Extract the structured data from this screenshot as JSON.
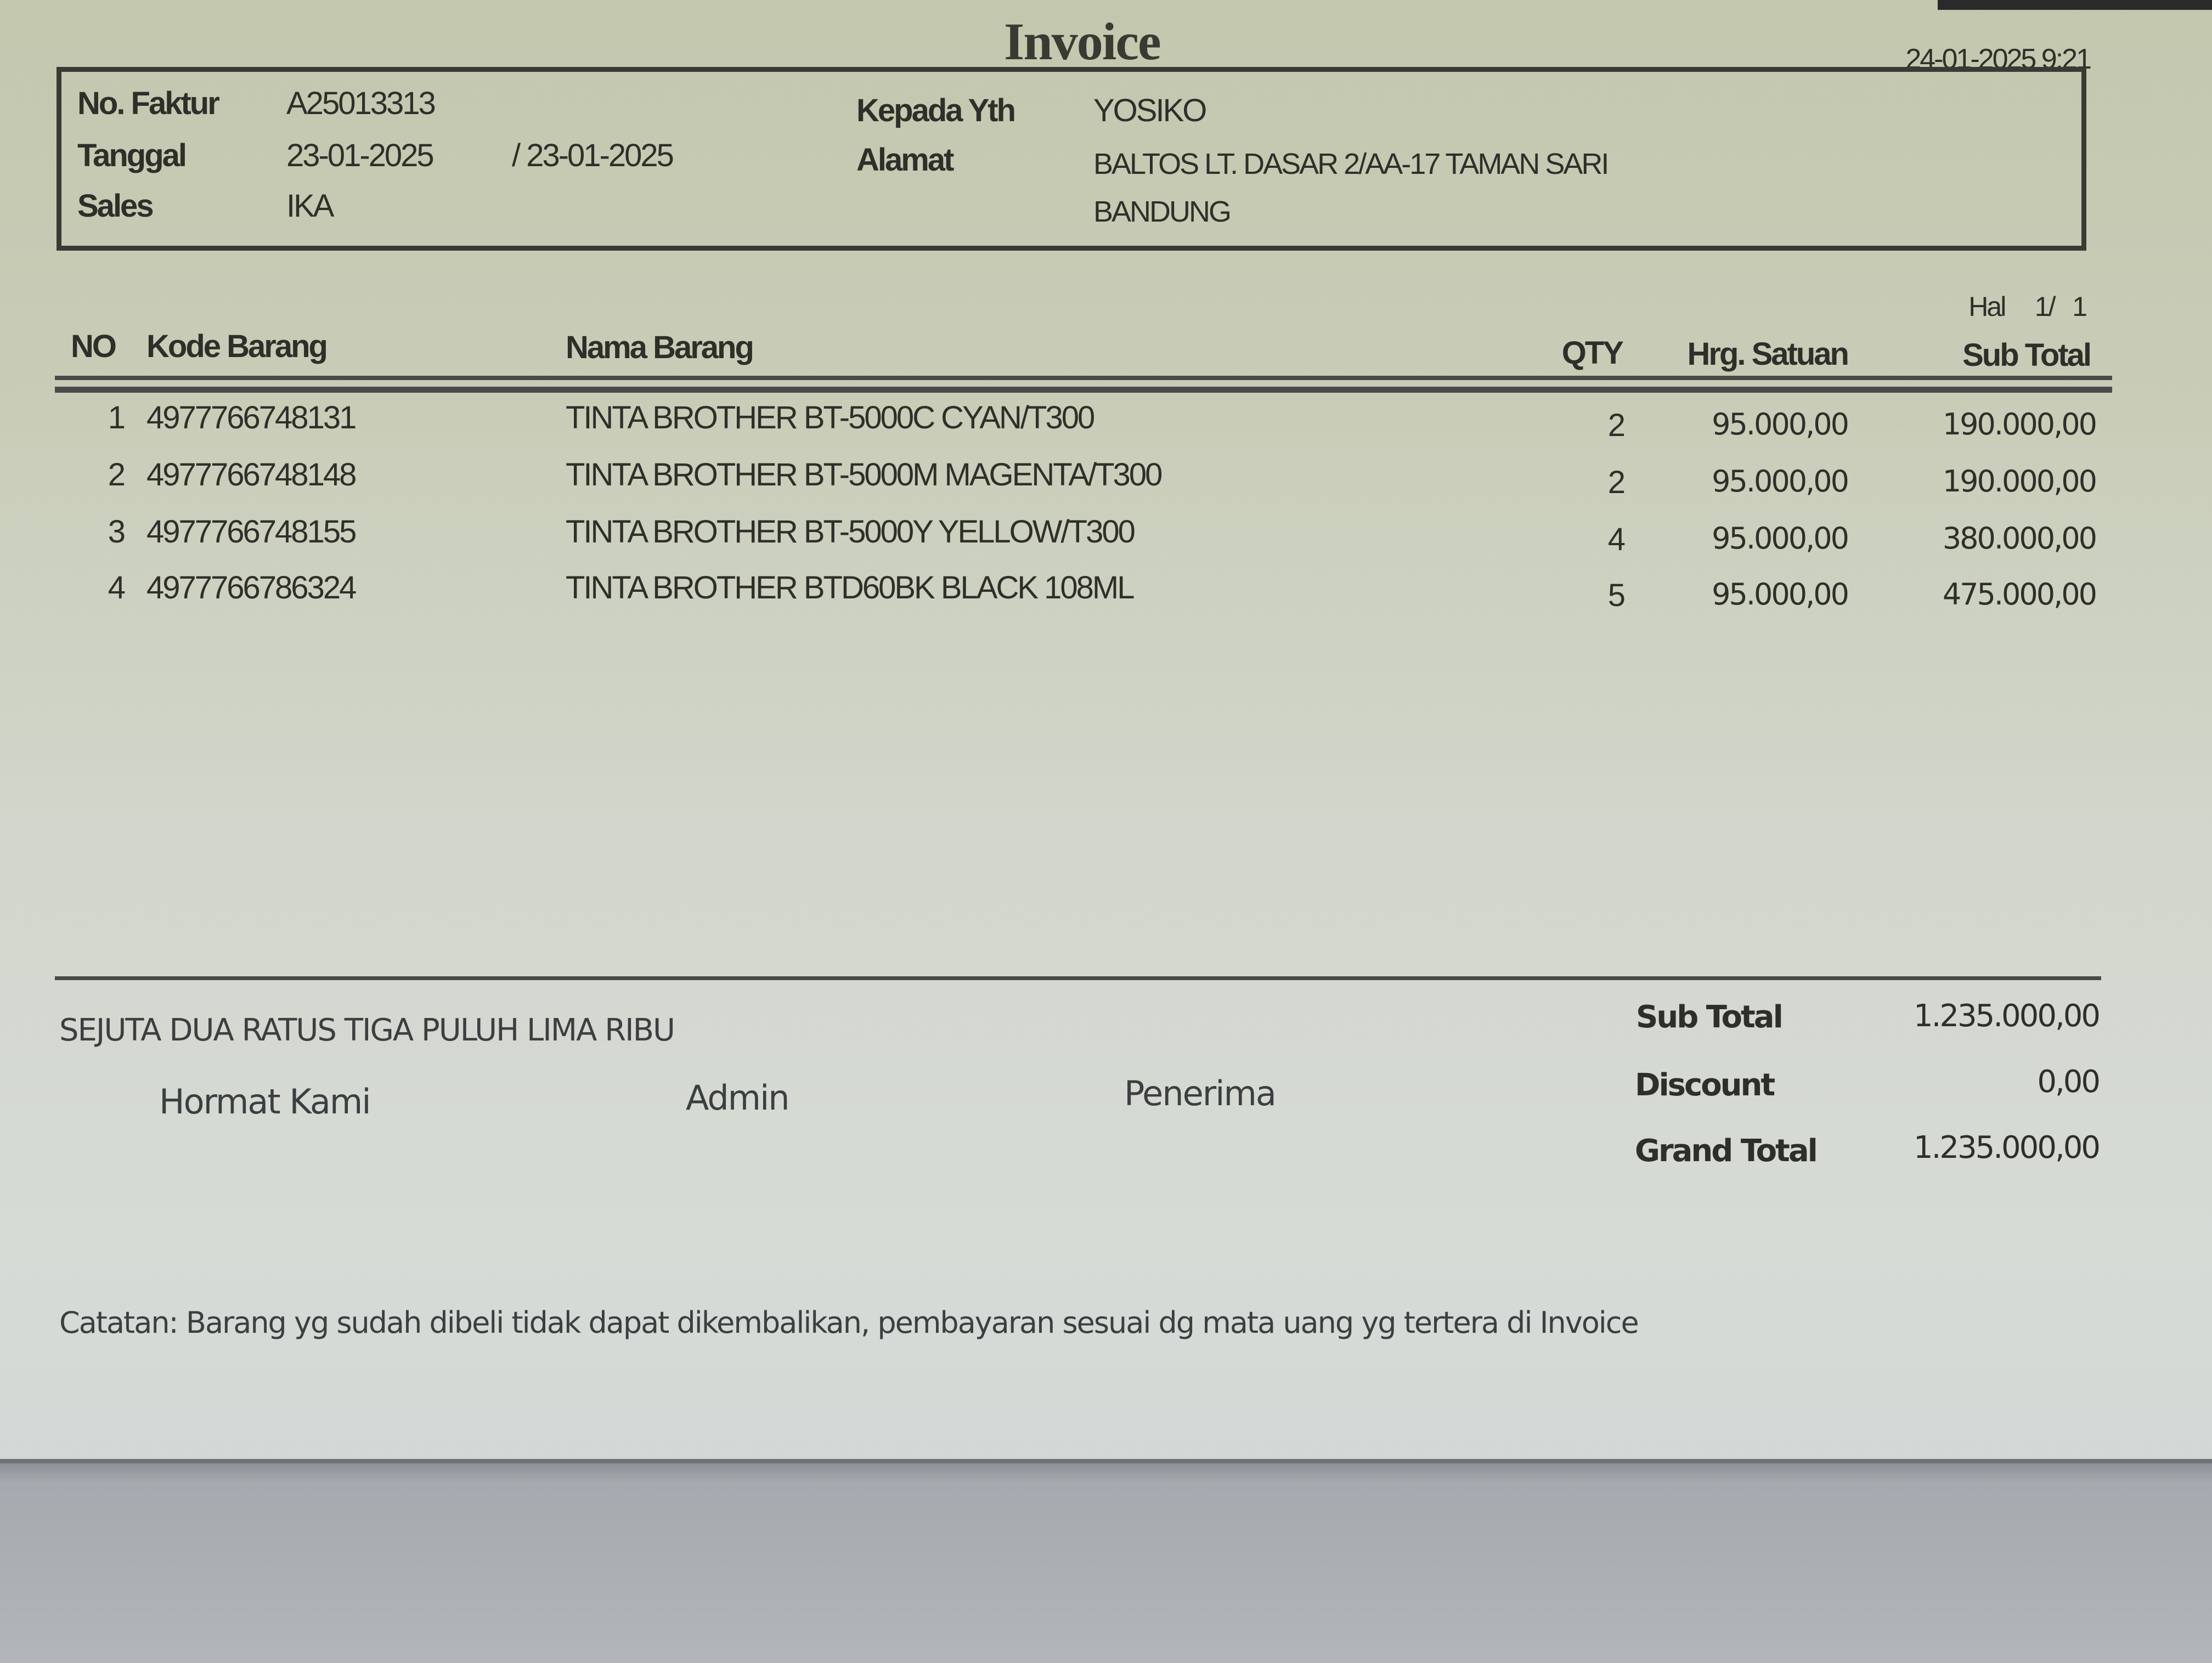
{
  "header": {
    "title": "Invoice",
    "printed_at": "24-01-2025 9:21"
  },
  "info": {
    "no_faktur_label": "No. Faktur",
    "no_faktur": "A25013313",
    "tanggal_label": "Tanggal",
    "tanggal": "23-01-2025",
    "tanggal2": "/ 23-01-2025",
    "sales_label": "Sales",
    "sales": "IKA",
    "kepada_label": "Kepada Yth",
    "kepada": "YOSIKO",
    "alamat_label": "Alamat",
    "alamat_line1": "BALTOS LT. DASAR 2/AA-17 TAMAN SARI",
    "alamat_line2": "BANDUNG"
  },
  "page": {
    "label": "Hal",
    "current": "1/",
    "total": "1"
  },
  "table": {
    "columns": [
      "NO",
      "Kode Barang",
      "Nama Barang",
      "QTY",
      "Hrg. Satuan",
      "Sub Total"
    ],
    "rows": [
      {
        "no": "1",
        "kode": "4977766748131",
        "nama": "TINTA BROTHER BT-5000C CYAN/T300",
        "qty": "2",
        "harga": "95.000,00",
        "subtotal": "190.000,00"
      },
      {
        "no": "2",
        "kode": "4977766748148",
        "nama": "TINTA BROTHER BT-5000M MAGENTA/T300",
        "qty": "2",
        "harga": "95.000,00",
        "subtotal": "190.000,00"
      },
      {
        "no": "3",
        "kode": "4977766748155",
        "nama": "TINTA BROTHER BT-5000Y YELLOW/T300",
        "qty": "4",
        "harga": "95.000,00",
        "subtotal": "380.000,00"
      },
      {
        "no": "4",
        "kode": "4977766786324",
        "nama": "TINTA BROTHER BTD60BK BLACK 108ML",
        "qty": "5",
        "harga": "95.000,00",
        "subtotal": "475.000,00"
      }
    ]
  },
  "footer": {
    "terbilang": "SEJUTA DUA RATUS TIGA PULUH LIMA RIBU",
    "hormat_kami": "Hormat Kami",
    "admin": "Admin",
    "penerima": "Penerima",
    "subtotal_label": "Sub Total",
    "subtotal": "1.235.000,00",
    "discount_label": "Discount",
    "discount": "0,00",
    "grand_total_label": "Grand Total",
    "grand_total": "1.235.000,00",
    "catatan": "Catatan: Barang yg sudah dibeli tidak dapat dikembalikan, pembayaran sesuai dg mata uang yg tertera di Invoice"
  }
}
